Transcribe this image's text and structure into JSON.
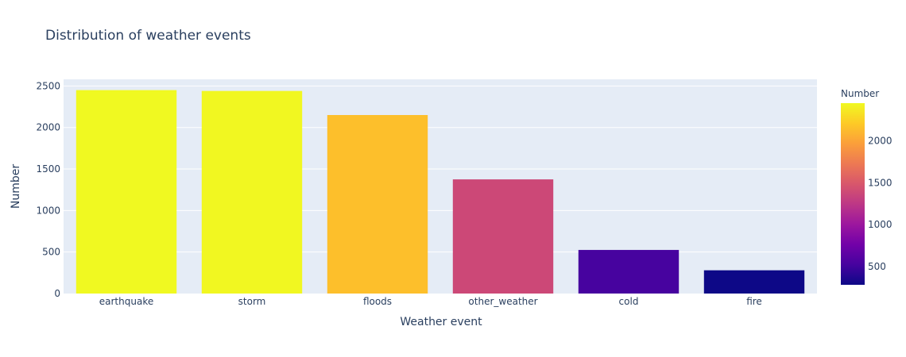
{
  "chart_data": {
    "type": "bar",
    "title": "Distribution of weather events",
    "xlabel": "Weather event",
    "ylabel": "Number",
    "categories": [
      "earthquake",
      "storm",
      "floods",
      "other_weather",
      "cold",
      "fire"
    ],
    "values": [
      2450,
      2440,
      2150,
      1375,
      525,
      280
    ],
    "ylim": [
      0,
      2580
    ],
    "yticks": [
      0,
      500,
      1000,
      1500,
      2000,
      2500
    ],
    "grid": true,
    "colorbar": {
      "title": "Number",
      "range": [
        280,
        2450
      ],
      "ticks": [
        500,
        1000,
        1500,
        2000
      ],
      "colorscale": "plasma"
    },
    "colors": {
      "plot_background": "#e5ecf6",
      "gridline": "#ffffff",
      "text": "#2a3f5f"
    }
  }
}
